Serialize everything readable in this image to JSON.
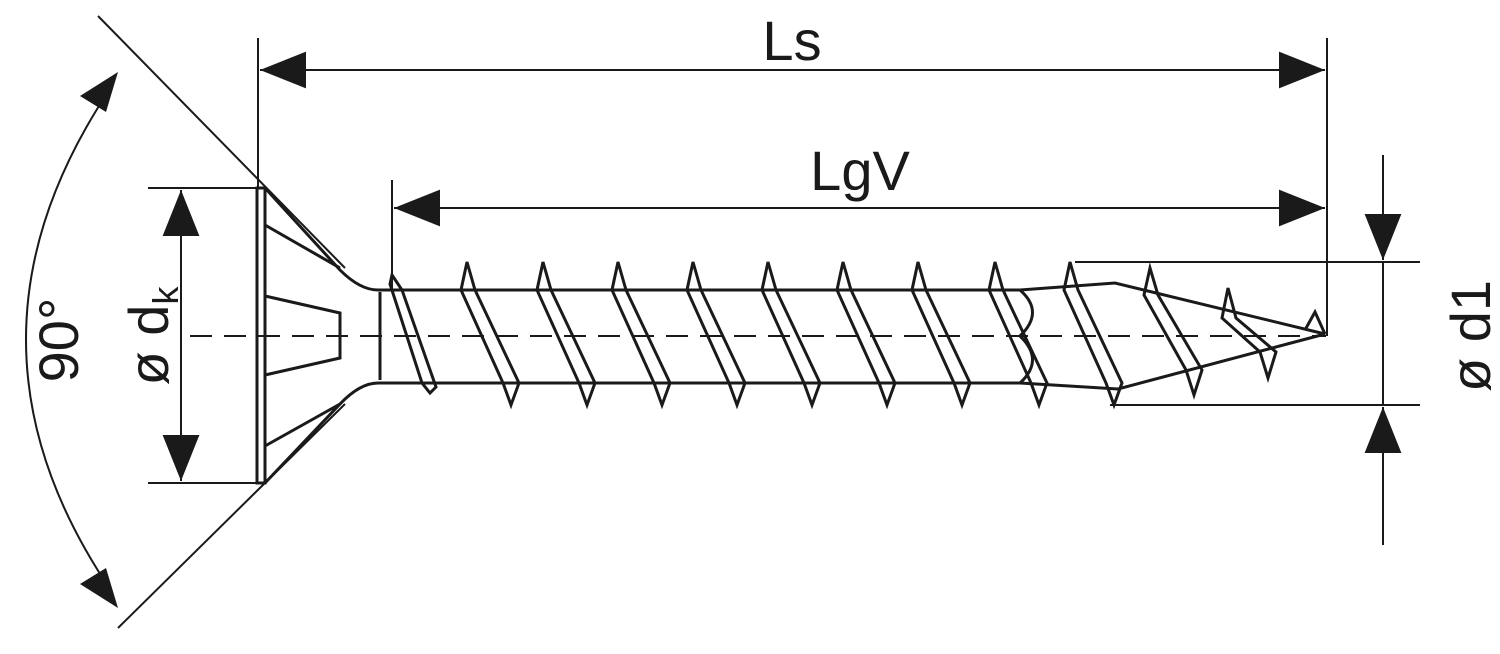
{
  "labels": {
    "overall_length": "Ls",
    "thread_length": "LgV",
    "head_angle": "90°",
    "head_diameter_prefix": "ø d",
    "head_diameter_subscript": "k",
    "thread_diameter": "ø d1"
  },
  "colors": {
    "line": "#1a1a1a",
    "background": "#ffffff"
  },
  "thread_count": 12
}
